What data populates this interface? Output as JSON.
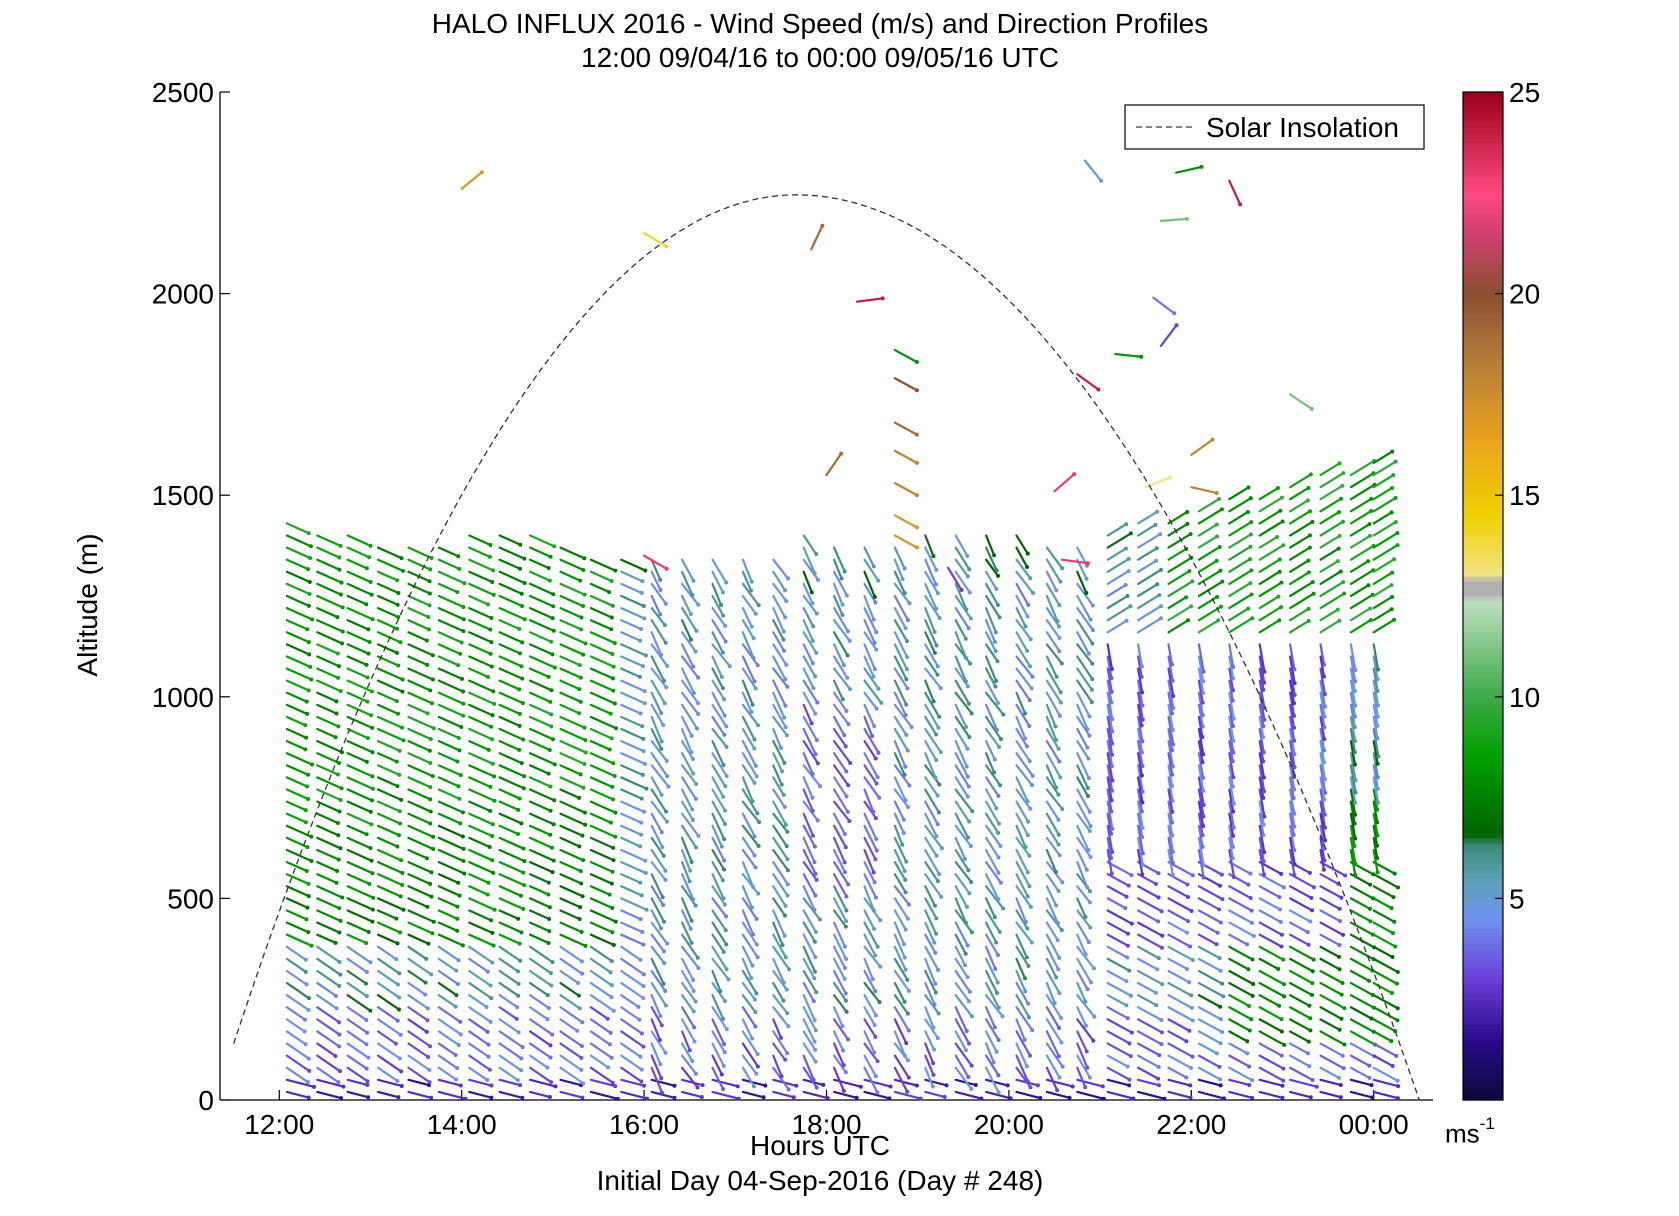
{
  "title": {
    "line1": "HALO INFLUX 2016 - Wind Speed (m/s) and Direction Profiles",
    "line2": "12:00 09/04/16 to 00:00 09/05/16  UTC"
  },
  "caption": "Initial Day 04-Sep-2016 (Day # 248)",
  "colorbar": {
    "unit": "ms",
    "unit_exp": "-1",
    "range": [
      0,
      25
    ],
    "ticks": [
      "5",
      "10",
      "15",
      "20",
      "25"
    ],
    "stops": [
      {
        "v": 0,
        "color": "#0a0a3a"
      },
      {
        "v": 1.5,
        "color": "#2a0a8a"
      },
      {
        "v": 3,
        "color": "#6a3ed8"
      },
      {
        "v": 4.5,
        "color": "#6f93f0"
      },
      {
        "v": 5.5,
        "color": "#5aa0b4"
      },
      {
        "v": 6.3,
        "color": "#3d8c7c"
      },
      {
        "v": 6.6,
        "color": "#006400"
      },
      {
        "v": 8.5,
        "color": "#00a000"
      },
      {
        "v": 10,
        "color": "#3caa48"
      },
      {
        "v": 12.4,
        "color": "#bfe0c0"
      },
      {
        "v": 12.5,
        "color": "#b0b0b0"
      },
      {
        "v": 12.9,
        "color": "#b0b0b0"
      },
      {
        "v": 13.0,
        "color": "#f2e58a"
      },
      {
        "v": 14.5,
        "color": "#f0d000"
      },
      {
        "v": 16.5,
        "color": "#e8a020"
      },
      {
        "v": 18.5,
        "color": "#b07a3a"
      },
      {
        "v": 20,
        "color": "#8a5030"
      },
      {
        "v": 21.5,
        "color": "#d04070"
      },
      {
        "v": 22.5,
        "color": "#ff4a80"
      },
      {
        "v": 25,
        "color": "#9a0018"
      }
    ]
  },
  "chart_data": {
    "type": "wind-barb profile",
    "xlabel": "Hours UTC",
    "ylabel": "Altitude (m)",
    "x_ticks": [
      "12:00",
      "14:00",
      "16:00",
      "18:00",
      "20:00",
      "22:00",
      "00:00"
    ],
    "y_ticks": [
      "0",
      "500",
      "1000",
      "1500",
      "2000",
      "2500"
    ],
    "xlim_hours": [
      11.35,
      24.65
    ],
    "ylim": [
      0,
      2500
    ],
    "legend": {
      "label": "Solar Insolation",
      "placement": "top-right",
      "style": "dashed black"
    },
    "solar_insolation": {
      "peak_time": "17:40",
      "peak_altitude_m": 2245,
      "start_time": "11:30",
      "start_altitude_m": 140,
      "end_time": "00:30",
      "end_altitude_m": 0
    },
    "profile_times": [
      "12:05",
      "12:25",
      "12:45",
      "13:05",
      "13:25",
      "13:45",
      "14:05",
      "14:25",
      "14:45",
      "15:05",
      "15:25",
      "15:45",
      "16:05",
      "16:25",
      "16:45",
      "17:05",
      "17:25",
      "17:45",
      "18:05",
      "18:25",
      "18:45",
      "19:05",
      "19:25",
      "19:45",
      "20:05",
      "20:25",
      "20:45",
      "21:05",
      "21:25",
      "21:45",
      "22:05",
      "22:25",
      "22:45",
      "23:05",
      "23:25",
      "23:45",
      "00:00"
    ],
    "profile_tops_m": [
      1450,
      1410,
      1400,
      1390,
      1380,
      1380,
      1410,
      1410,
      1400,
      1380,
      1360,
      1340,
      1350,
      1360,
      1360,
      1350,
      1340,
      1400,
      1390,
      1380,
      1390,
      1400,
      1400,
      1400,
      1410,
      1390,
      1370,
      1420,
      1440,
      1450,
      1470,
      1490,
      1510,
      1530,
      1550,
      1570,
      1590
    ],
    "speed_summary_m_s": [
      {
        "layer": "0-80 m",
        "typical": 2
      },
      {
        "layer": "80-400 m",
        "typical": 4.5
      },
      {
        "layer": "400-1400 m before 16:00",
        "typical": 7.5
      },
      {
        "layer": "400-1400 m 16:00-21:00",
        "typical": 4.5
      },
      {
        "layer": "above 1200 m after 22:00",
        "typical": 8
      }
    ],
    "scattered_upper_vectors": [
      {
        "time": "14:00",
        "alt": 2260,
        "speed": 17
      },
      {
        "time": "16:00",
        "alt": 2150,
        "speed": 14
      },
      {
        "time": "17:50",
        "alt": 2110,
        "speed": 19
      },
      {
        "time": "18:20",
        "alt": 1980,
        "speed": 24
      },
      {
        "time": "20:50",
        "alt": 2330,
        "speed": 5
      },
      {
        "time": "21:50",
        "alt": 2300,
        "speed": 8
      },
      {
        "time": "22:25",
        "alt": 2280,
        "speed": 24
      },
      {
        "time": "21:40",
        "alt": 2180,
        "speed": 11
      },
      {
        "time": "21:35",
        "alt": 1990,
        "speed": 4
      },
      {
        "time": "21:40",
        "alt": 1870,
        "speed": 3
      },
      {
        "time": "20:45",
        "alt": 1800,
        "speed": 24
      },
      {
        "time": "21:10",
        "alt": 1850,
        "speed": 8
      },
      {
        "time": "23:05",
        "alt": 1750,
        "speed": 11
      },
      {
        "time": "22:00",
        "alt": 1600,
        "speed": 18
      },
      {
        "time": "22:00",
        "alt": 1520,
        "speed": 18
      },
      {
        "time": "21:30",
        "alt": 1520,
        "speed": 13
      },
      {
        "time": "20:30",
        "alt": 1510,
        "speed": 23
      },
      {
        "time": "18:00",
        "alt": 1550,
        "speed": 19
      },
      {
        "time": "19:20",
        "alt": 1320,
        "speed": 3
      },
      {
        "time": "20:35",
        "alt": 1340,
        "speed": 23
      },
      {
        "time": "16:00",
        "alt": 1350,
        "speed": 23
      }
    ],
    "column_18_45": [
      {
        "alt": 1860,
        "speed": 8
      },
      {
        "alt": 1790,
        "speed": 20
      },
      {
        "alt": 1680,
        "speed": 19
      },
      {
        "alt": 1610,
        "speed": 18
      },
      {
        "alt": 1530,
        "speed": 18
      },
      {
        "alt": 1450,
        "speed": 17
      },
      {
        "alt": 1400,
        "speed": 17
      }
    ]
  }
}
